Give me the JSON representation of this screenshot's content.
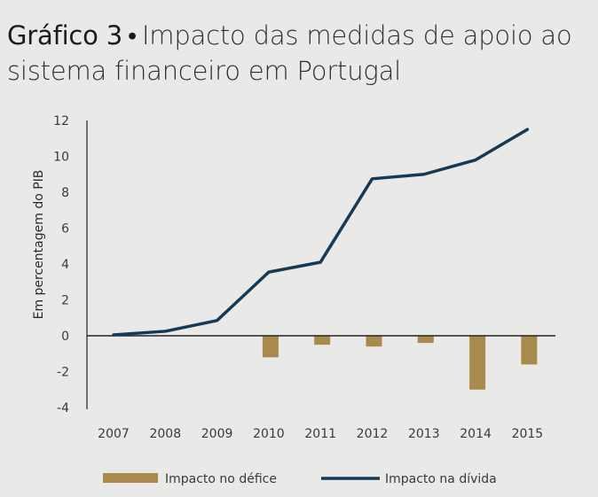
{
  "title": {
    "number": "Gráfico 3",
    "separator": "•",
    "line1": "Impacto das medidas de apoio ao",
    "line2": "sistema financeiro em Portugal"
  },
  "chart_data": {
    "type": "bar",
    "title": "Gráfico 3 • Impacto das medidas de apoio ao sistema financeiro em Portugal",
    "ylabel": "Em percentagem do PIB",
    "xlabel": "",
    "categories": [
      "2007",
      "2008",
      "2009",
      "2010",
      "2011",
      "2012",
      "2013",
      "2014",
      "2015"
    ],
    "yticks": [
      "12",
      "10",
      "8",
      "6",
      "4",
      "2",
      "0",
      "-2",
      "-4"
    ],
    "ylim": [
      -4,
      12
    ],
    "grid": false,
    "legend_position": "bottom",
    "series": [
      {
        "name": "Impacto no défice",
        "type": "bar",
        "color": "#a88a4c",
        "values": [
          0,
          0,
          0,
          -1.2,
          -0.5,
          -0.6,
          -0.4,
          -3.0,
          -1.6
        ]
      },
      {
        "name": "Impacto na dívida",
        "type": "line",
        "color": "#143a55",
        "values": [
          0.05,
          0.25,
          0.85,
          3.55,
          4.1,
          8.75,
          9.0,
          9.8,
          11.5
        ]
      }
    ]
  }
}
